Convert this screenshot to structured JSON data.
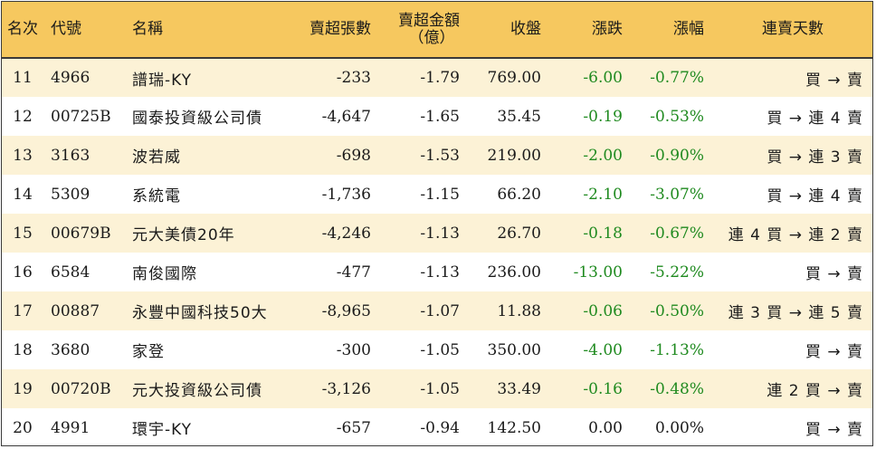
{
  "colors": {
    "header_bg": "#f6c85f",
    "row_alt_bg": "#fcf2d6",
    "down_color": "#1f8a1f",
    "border": "#3a3a3a"
  },
  "headers": {
    "rank": "名次",
    "code": "代號",
    "name": "名稱",
    "net_sell_volume": "賣超張數",
    "net_sell_amount_line1": "賣超金額",
    "net_sell_amount_line2": "（億）",
    "close": "收盤",
    "change": "漲跌",
    "change_pct": "漲幅",
    "consecutive_days": "連賣天數"
  },
  "rows": [
    {
      "rank": "11",
      "code": "4966",
      "name": "譜瑞-KY",
      "volume": "-233",
      "amount": "-1.79",
      "close": "769.00",
      "change": "-6.00",
      "pct": "-0.77%",
      "days": "買 → 賣",
      "trend": "down"
    },
    {
      "rank": "12",
      "code": "00725B",
      "name": "國泰投資級公司債",
      "volume": "-4,647",
      "amount": "-1.65",
      "close": "35.45",
      "change": "-0.19",
      "pct": "-0.53%",
      "days": "買 → 連 4 賣",
      "trend": "down"
    },
    {
      "rank": "13",
      "code": "3163",
      "name": "波若威",
      "volume": "-698",
      "amount": "-1.53",
      "close": "219.00",
      "change": "-2.00",
      "pct": "-0.90%",
      "days": "買 → 連 3 賣",
      "trend": "down"
    },
    {
      "rank": "14",
      "code": "5309",
      "name": "系統電",
      "volume": "-1,736",
      "amount": "-1.15",
      "close": "66.20",
      "change": "-2.10",
      "pct": "-3.07%",
      "days": "買 → 連 4 賣",
      "trend": "down"
    },
    {
      "rank": "15",
      "code": "00679B",
      "name": "元大美債20年",
      "volume": "-4,246",
      "amount": "-1.13",
      "close": "26.70",
      "change": "-0.18",
      "pct": "-0.67%",
      "days": "連 4 買 → 連 2 賣",
      "trend": "down"
    },
    {
      "rank": "16",
      "code": "6584",
      "name": "南俊國際",
      "volume": "-477",
      "amount": "-1.13",
      "close": "236.00",
      "change": "-13.00",
      "pct": "-5.22%",
      "days": "買 → 賣",
      "trend": "down"
    },
    {
      "rank": "17",
      "code": "00887",
      "name": "永豐中國科技50大",
      "volume": "-8,965",
      "amount": "-1.07",
      "close": "11.88",
      "change": "-0.06",
      "pct": "-0.50%",
      "days": "連 3 買 → 連 5 賣",
      "trend": "down"
    },
    {
      "rank": "18",
      "code": "3680",
      "name": "家登",
      "volume": "-300",
      "amount": "-1.05",
      "close": "350.00",
      "change": "-4.00",
      "pct": "-1.13%",
      "days": "買 → 賣",
      "trend": "down"
    },
    {
      "rank": "19",
      "code": "00720B",
      "name": "元大投資級公司債",
      "volume": "-3,126",
      "amount": "-1.05",
      "close": "33.49",
      "change": "-0.16",
      "pct": "-0.48%",
      "days": "連 2 買 → 賣",
      "trend": "down"
    },
    {
      "rank": "20",
      "code": "4991",
      "name": "環宇-KY",
      "volume": "-657",
      "amount": "-0.94",
      "close": "142.50",
      "change": "0.00",
      "pct": "0.00%",
      "days": "買 → 賣",
      "trend": "flat"
    }
  ]
}
